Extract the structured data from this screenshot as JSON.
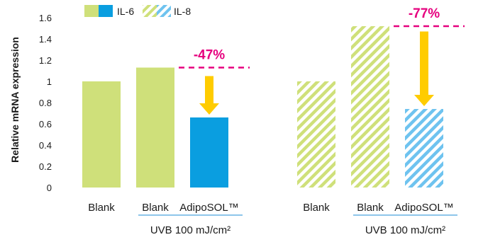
{
  "chart_data": {
    "type": "bar",
    "ylabel": "Relative mRNA expression",
    "ylim": [
      0,
      1.6
    ],
    "yticks": [
      "0",
      "0.2",
      "0.4",
      "0.6",
      "0.8",
      "1",
      "1.2",
      "1.4",
      "1.6"
    ],
    "ytick_values": [
      0,
      0.2,
      0.4,
      0.6,
      0.8,
      1,
      1.2,
      1.4,
      1.6
    ],
    "grid": false,
    "legend": {
      "position": "top",
      "entries": [
        "IL-6",
        "IL-8"
      ]
    },
    "groups": [
      {
        "series": "IL-6",
        "categories": [
          "Blank",
          "Blank",
          "AdipoSOL™"
        ],
        "values": [
          1.0,
          1.13,
          0.66
        ],
        "fill": [
          "solid-light",
          "solid-light",
          "solid-dark"
        ],
        "group_label": "UVB 100 mJ/cm²",
        "annotation": "-47%",
        "arrow_from": 1.05,
        "arrow_to": 0.66
      },
      {
        "series": "IL-8",
        "categories": [
          "Blank",
          "Blank",
          "AdipoSOL™"
        ],
        "values": [
          1.0,
          1.52,
          0.74
        ],
        "fill": [
          "hatch-light",
          "hatch-light",
          "hatch-dark"
        ],
        "group_label": "UVB 100 mJ/cm²",
        "annotation": "-77%",
        "arrow_from": 1.47,
        "arrow_to": 0.74
      }
    ]
  },
  "colors": {
    "light_green": "#cfe07a",
    "blue": "#0a9ee0",
    "light_blue": "#6ec3ef",
    "magenta": "#e6007e",
    "arrow_yellow": "#ffcc00",
    "axis_text": "#1a1a1a",
    "bracket_line": "#1b8ed4"
  }
}
